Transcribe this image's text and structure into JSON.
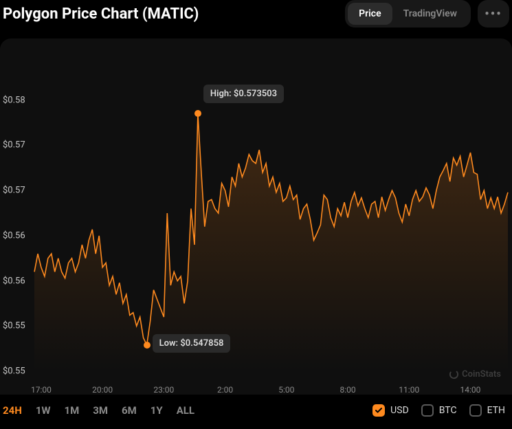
{
  "title": "Polygon Price Chart (MATIC)",
  "tabs": [
    {
      "label": "Price",
      "active": true
    },
    {
      "label": "TradingView",
      "active": false
    }
  ],
  "chart": {
    "type": "line-area",
    "background_color": "#0f0f0f",
    "line_color": "#ff8a1f",
    "line_width": 1.6,
    "area_top_color": "rgba(255,138,31,0.22)",
    "area_bottom_color": "rgba(255,138,31,0.00)",
    "grid_color": "#333333",
    "text_color": "#c8c8c8",
    "marker_color": "#ff8a1f",
    "ylabel_fontsize": 13,
    "xlabel_fontsize": 12,
    "ylim": [
      0.545,
      0.58
    ],
    "ytick_labels": [
      "$0.55",
      "$0.55",
      "$0.56",
      "$0.56",
      "$0.57",
      "$0.57",
      "$0.58"
    ],
    "ytick_values": [
      0.545,
      0.55,
      0.555,
      0.56,
      0.565,
      0.57,
      0.575
    ],
    "xtick_labels": [
      "17:00",
      "20:00",
      "23:00",
      "2:00",
      "5:00",
      "8:00",
      "11:00",
      "14:00"
    ],
    "xtick_indices": [
      2,
      20,
      38,
      56,
      74,
      92,
      110,
      128
    ],
    "high": {
      "label": "High: $0.573503",
      "value": 0.573503,
      "index": 48
    },
    "low": {
      "label": "Low: $0.547858",
      "value": 0.547858,
      "index": 33
    },
    "series": [
      0.556,
      0.558,
      0.5565,
      0.5555,
      0.5575,
      0.558,
      0.556,
      0.5575,
      0.556,
      0.5553,
      0.557,
      0.5575,
      0.556,
      0.557,
      0.559,
      0.5575,
      0.5595,
      0.5607,
      0.558,
      0.56,
      0.5565,
      0.557,
      0.5545,
      0.5555,
      0.5535,
      0.5548,
      0.5525,
      0.5535,
      0.5512,
      0.5515,
      0.55,
      0.551,
      0.5487,
      0.5479,
      0.5505,
      0.554,
      0.553,
      0.552,
      0.551,
      0.5625,
      0.5545,
      0.556,
      0.555,
      0.5555,
      0.5525,
      0.555,
      0.563,
      0.559,
      0.5735,
      0.567,
      0.561,
      0.5638,
      0.564,
      0.563,
      0.5625,
      0.5658,
      0.565,
      0.5632,
      0.5665,
      0.5655,
      0.568,
      0.5665,
      0.5675,
      0.569,
      0.5683,
      0.568,
      0.5695,
      0.567,
      0.568,
      0.5655,
      0.5665,
      0.5648,
      0.5658,
      0.5638,
      0.5642,
      0.5655,
      0.564,
      0.5645,
      0.5618,
      0.563,
      0.5635,
      0.5618,
      0.5595,
      0.5603,
      0.5612,
      0.5645,
      0.564,
      0.562,
      0.561,
      0.563,
      0.5622,
      0.5637,
      0.562,
      0.5638,
      0.5648,
      0.5633,
      0.5642,
      0.563,
      0.562,
      0.5635,
      0.5638,
      0.562,
      0.5643,
      0.5628,
      0.564,
      0.565,
      0.5642,
      0.5625,
      0.5615,
      0.5635,
      0.5622,
      0.564,
      0.565,
      0.5638,
      0.5643,
      0.5653,
      0.5645,
      0.563,
      0.565,
      0.5665,
      0.5672,
      0.568,
      0.566,
      0.5686,
      0.5678,
      0.5688,
      0.5665,
      0.5678,
      0.5692,
      0.567,
      0.5668,
      0.564,
      0.565,
      0.563,
      0.5642,
      0.563,
      0.5643,
      0.5625,
      0.5635,
      0.5648
    ]
  },
  "watermark": "CoinStats",
  "ranges": [
    {
      "label": "24H",
      "active": true
    },
    {
      "label": "1W",
      "active": false
    },
    {
      "label": "1M",
      "active": false
    },
    {
      "label": "3M",
      "active": false
    },
    {
      "label": "6M",
      "active": false
    },
    {
      "label": "1Y",
      "active": false
    },
    {
      "label": "ALL",
      "active": false
    }
  ],
  "quotes": [
    {
      "label": "USD",
      "checked": true
    },
    {
      "label": "BTC",
      "checked": false
    },
    {
      "label": "ETH",
      "checked": false
    }
  ]
}
